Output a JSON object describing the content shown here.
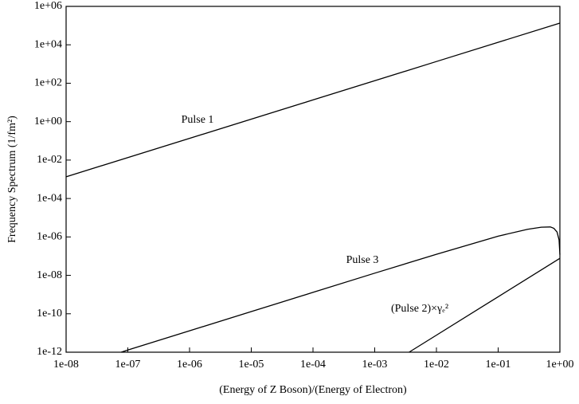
{
  "chart_data": {
    "type": "line",
    "xlabel": "(Energy of Z Boson)/(Energy of Electron)",
    "ylabel": "Frequency Spectrum (1/fm²)",
    "xscale": "log",
    "yscale": "log",
    "grid": false,
    "xlim": [
      1e-08,
      1
    ],
    "ylim": [
      1e-12,
      1000000.0
    ],
    "xticks": [
      {
        "value": 1e-08,
        "label": "1e-08"
      },
      {
        "value": 1e-07,
        "label": "1e-07"
      },
      {
        "value": 1e-06,
        "label": "1e-06"
      },
      {
        "value": 1e-05,
        "label": "1e-05"
      },
      {
        "value": 0.0001,
        "label": "1e-04"
      },
      {
        "value": 0.001,
        "label": "1e-03"
      },
      {
        "value": 0.01,
        "label": "1e-02"
      },
      {
        "value": 0.1,
        "label": "1e-01"
      },
      {
        "value": 1,
        "label": "1e+00"
      }
    ],
    "yticks": [
      {
        "value": 1e-12,
        "label": "1e-12"
      },
      {
        "value": 1e-10,
        "label": "1e-10"
      },
      {
        "value": 1e-08,
        "label": "1e-08"
      },
      {
        "value": 1e-06,
        "label": "1e-06"
      },
      {
        "value": 0.0001,
        "label": "1e-04"
      },
      {
        "value": 0.01,
        "label": "1e-02"
      },
      {
        "value": 1,
        "label": "1e+00"
      },
      {
        "value": 100,
        "label": "1e+02"
      },
      {
        "value": 10000,
        "label": "1e+04"
      },
      {
        "value": 1000000,
        "label": "1e+06"
      }
    ],
    "series": [
      {
        "name": "Pulse 1",
        "color": "#000000",
        "x": [
          1e-08,
          1e-06,
          0.0001,
          0.01,
          1
        ],
        "values": [
          0.00135,
          0.135,
          13.5,
          1350,
          135000
        ]
      },
      {
        "name": "Pulse 3",
        "color": "#000000",
        "x": [
          7.8e-08,
          1e-07,
          1e-06,
          1e-05,
          0.0001,
          0.001,
          0.01,
          0.1,
          0.3,
          0.5,
          0.7,
          0.8,
          0.9,
          0.97,
          1
        ],
        "values": [
          1e-12,
          1.3e-12,
          1.3e-11,
          1.3e-10,
          1.3e-09,
          1.3e-08,
          1.25e-07,
          1.1e-06,
          2.5e-06,
          3.2e-06,
          3.3e-06,
          2.8e-06,
          1.8e-06,
          7e-07,
          1.2e-07
        ]
      },
      {
        "name": "(Pulse 2)×γₑ²",
        "color": "#000000",
        "x": [
          0.0036,
          0.01,
          0.1,
          1
        ],
        "values": [
          1e-12,
          7.7e-12,
          7.7e-10,
          7.7e-08
        ]
      }
    ]
  }
}
